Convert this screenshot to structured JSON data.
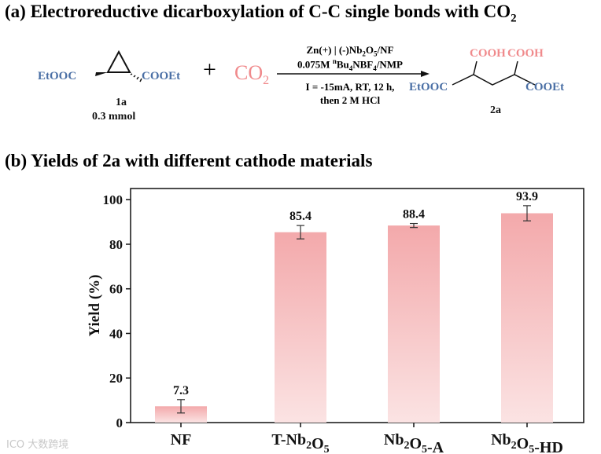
{
  "section_a": {
    "title": "(a) Electroreductive dicarboxylation of C-C single bonds with CO",
    "title_sub": "2",
    "reactant_left_group": "EtOOC",
    "reactant_right_group": "COOEt",
    "reactant_label": "1a",
    "reactant_amount": "0.3 mmol",
    "plus": "+",
    "co2_main": "CO",
    "co2_sub": "2",
    "cond_line1": "Zn(+) | (-)Nb2O5/NF",
    "cond_line2": "0.075M nBu4NBF4/NMP",
    "cond_line3": "I = -15mA, RT, 12 h,",
    "cond_line4": "then 2 M HCl",
    "product_top_left": "COOH",
    "product_top_right": "COOH",
    "product_left_group": "EtOOC",
    "product_right_group": "COOEt",
    "product_label": "2a"
  },
  "section_b": {
    "title": "(b) Yields of 2a with different cathode materials"
  },
  "colors": {
    "ester_blue": "#4a6fa5",
    "co2_red": "#f08a8c",
    "bar_top": "#f3a9ab",
    "bar_bottom": "#fbe3e3"
  },
  "chart_data": {
    "type": "bar",
    "title": "Yields of 2a with different cathode materials",
    "xlabel": "",
    "ylabel": "Yield (%)",
    "ylim": [
      0,
      105
    ],
    "yticks": [
      0,
      20,
      40,
      60,
      80,
      100
    ],
    "categories": [
      "NF",
      "T-Nb2O5",
      "Nb2O5-A",
      "Nb2O5-HD"
    ],
    "values": [
      7.3,
      85.4,
      88.4,
      93.9
    ],
    "errors": [
      3.0,
      3.0,
      0.9,
      3.4
    ],
    "data_labels": [
      "7.3",
      "85.4",
      "88.4",
      "93.9"
    ]
  },
  "watermark": "ICO 大数跨境"
}
